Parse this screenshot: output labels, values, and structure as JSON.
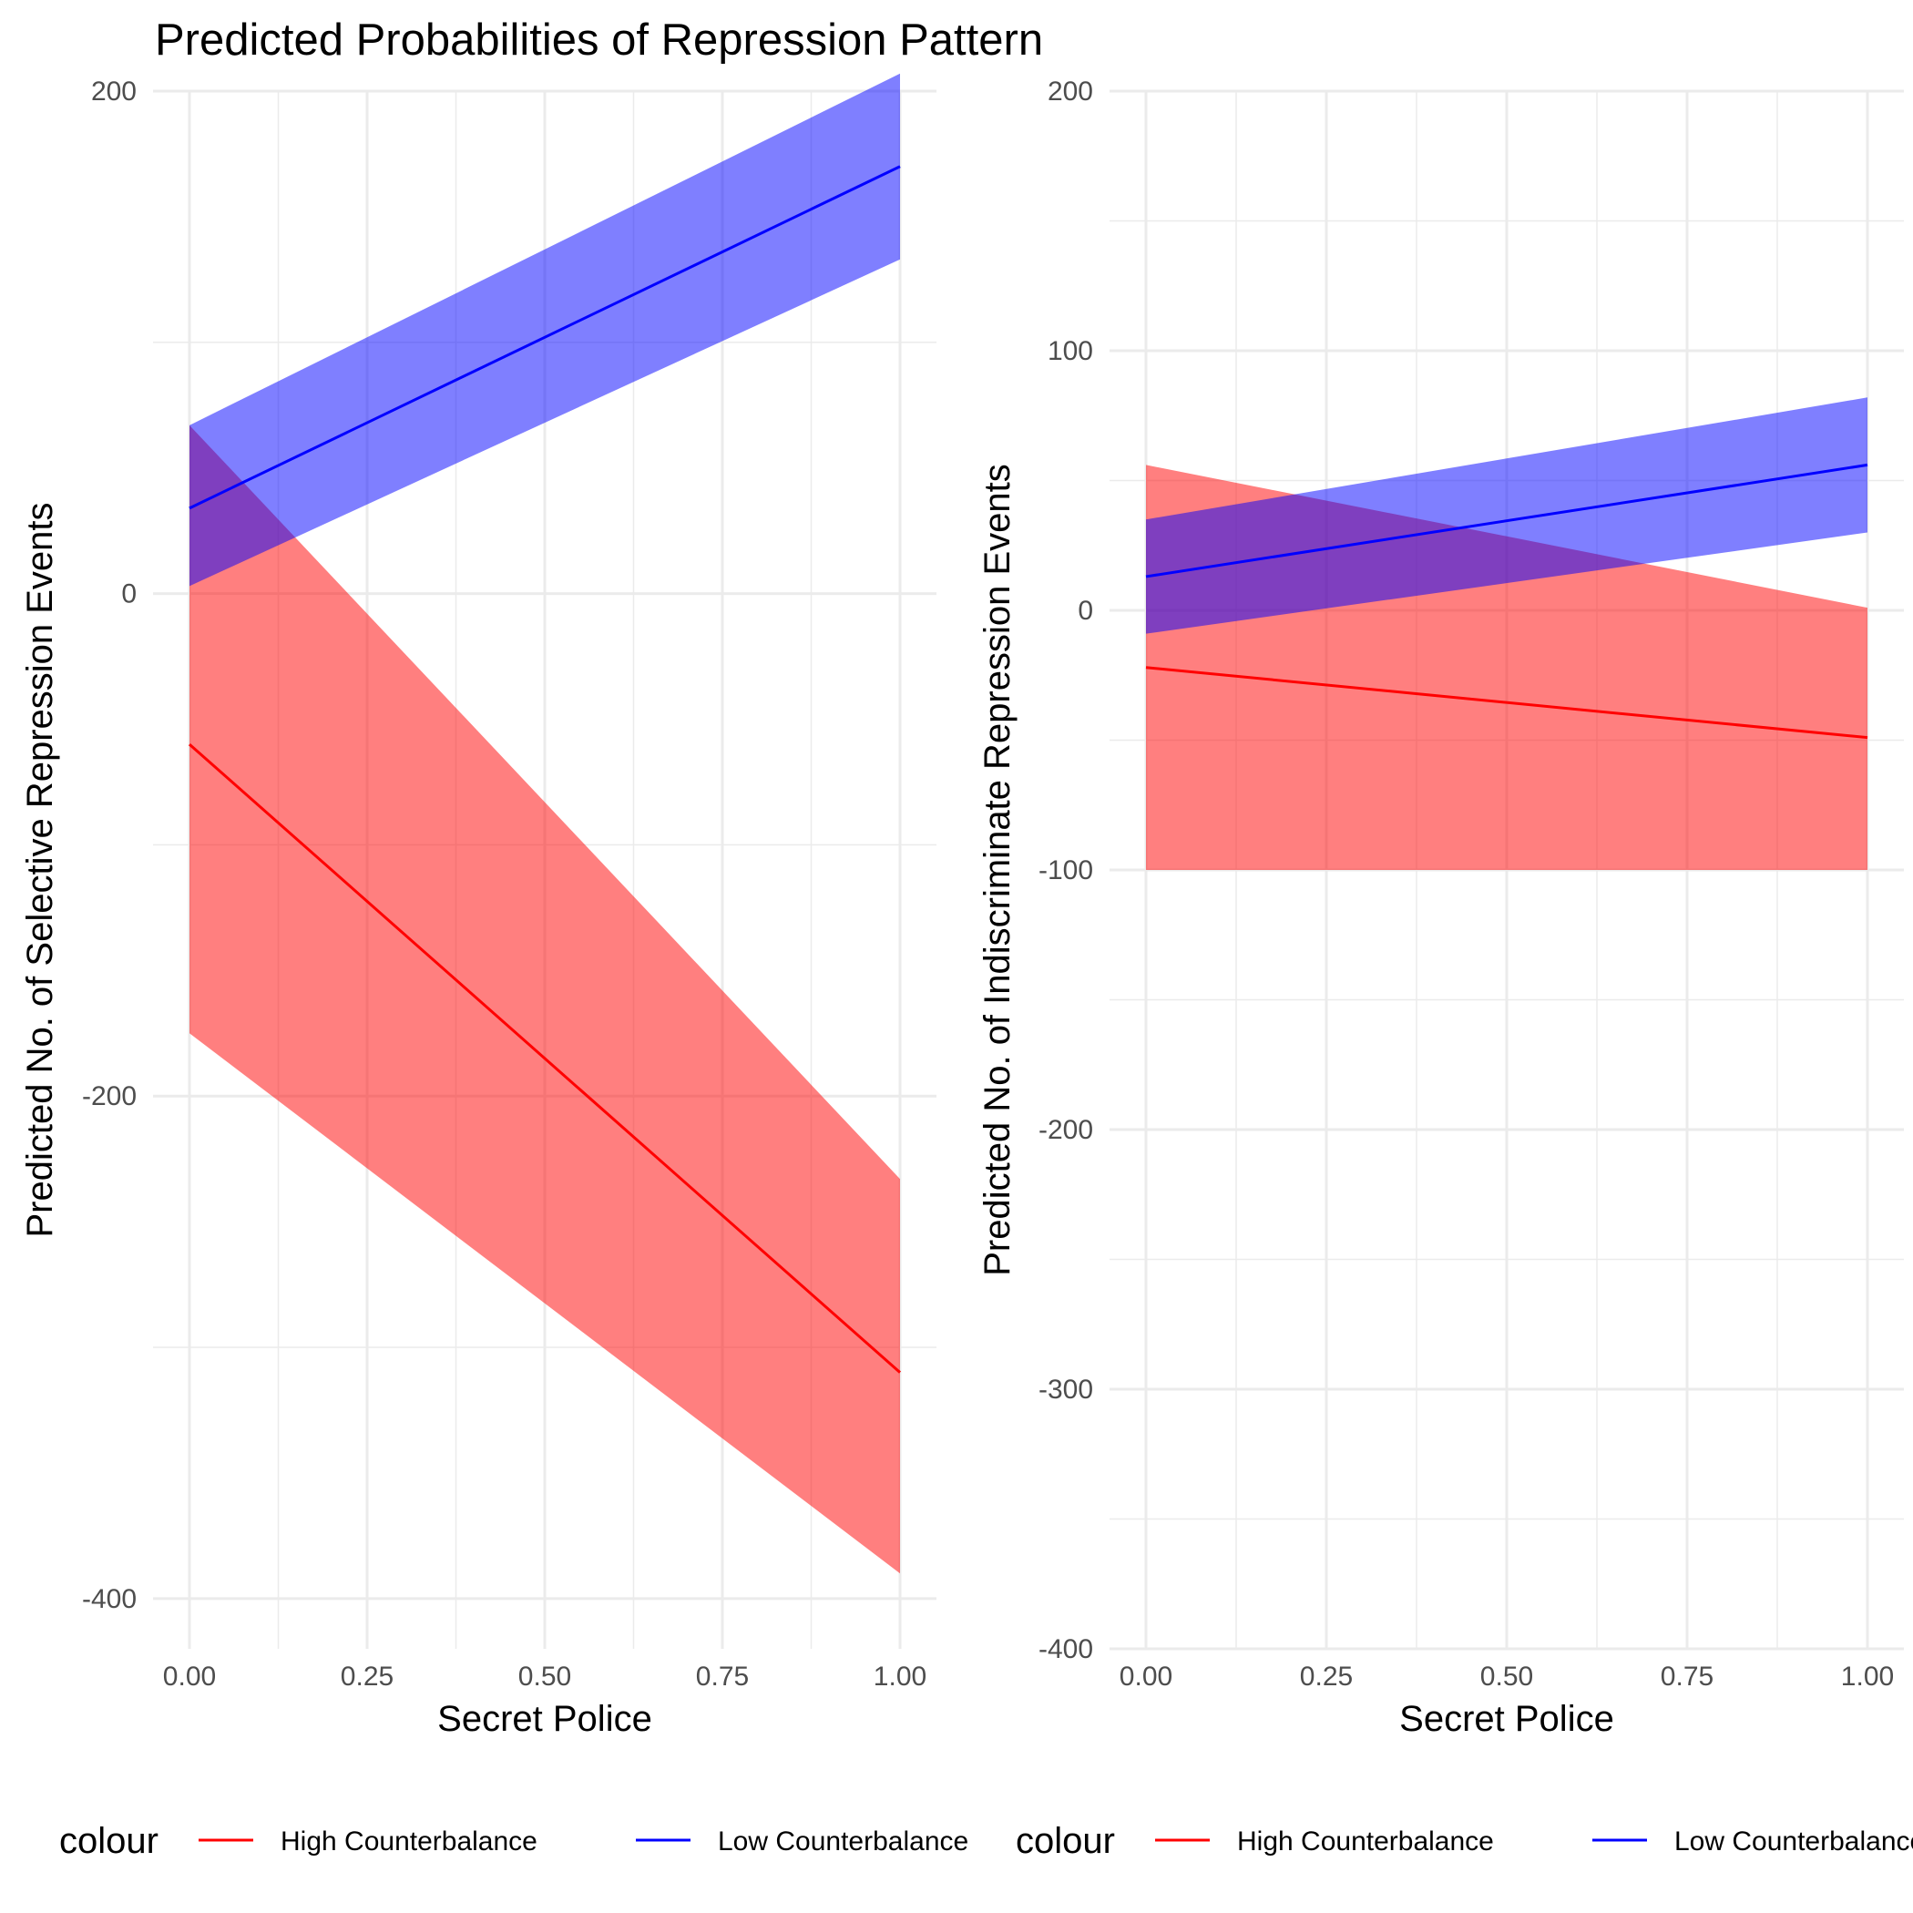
{
  "title": "Predicted Probabilities of Repression Pattern",
  "colors": {
    "high": "#ff0000",
    "low": "#0000ff",
    "high_band": "#ff0000",
    "low_band": "#0000ff",
    "grid": "#ebebeb",
    "background": "#ffffff"
  },
  "chart_data": [
    {
      "type": "line",
      "xlabel": "Secret Police",
      "ylabel": "Predicted No. of Selective Repression Events",
      "xlim": [
        0,
        1
      ],
      "ylim": [
        -420,
        200
      ],
      "x_ticks": [
        0,
        0.25,
        0.5,
        0.75,
        1
      ],
      "x_tick_labels": [
        "0.00",
        "0.25",
        "0.50",
        "0.75",
        "1.00"
      ],
      "y_ticks": [
        -400,
        -200,
        0,
        200
      ],
      "y_tick_labels": [
        "-400",
        "-200",
        "0",
        "200"
      ],
      "grid": true,
      "legend_title": "colour",
      "legend_position": "bottom",
      "series": [
        {
          "name": "High Counterbalance",
          "color": "#ff0000",
          "x": [
            0,
            1
          ],
          "y": [
            -60,
            -310
          ],
          "ci_lower": [
            -175,
            -390
          ],
          "ci_upper": [
            67,
            -233
          ]
        },
        {
          "name": "Low Counterbalance",
          "color": "#0000ff",
          "x": [
            0,
            1
          ],
          "y": [
            34,
            170
          ],
          "ci_lower": [
            3,
            133
          ],
          "ci_upper": [
            67,
            207
          ]
        }
      ]
    },
    {
      "type": "line",
      "xlabel": "Secret Police",
      "ylabel": "Predicted No. of Indiscriminate Repression Events",
      "xlim": [
        0,
        1
      ],
      "ylim": [
        -400,
        200
      ],
      "x_ticks": [
        0,
        0.25,
        0.5,
        0.75,
        1
      ],
      "x_tick_labels": [
        "0.00",
        "0.25",
        "0.50",
        "0.75",
        "1.00"
      ],
      "y_ticks": [
        -400,
        -300,
        -200,
        -100,
        0,
        100,
        200
      ],
      "y_tick_labels": [
        "-400",
        "-300",
        "-200",
        "-100",
        "0",
        "100",
        "200"
      ],
      "grid": true,
      "legend_title": "colour",
      "legend_position": "bottom",
      "series": [
        {
          "name": "High Counterbalance",
          "color": "#ff0000",
          "x": [
            0,
            1
          ],
          "y": [
            -22,
            -49
          ],
          "ci_lower": [
            -100,
            -100
          ],
          "ci_upper": [
            56,
            1
          ]
        },
        {
          "name": "Low Counterbalance",
          "color": "#0000ff",
          "x": [
            0,
            1
          ],
          "y": [
            13,
            56
          ],
          "ci_lower": [
            -9,
            30
          ],
          "ci_upper": [
            35,
            82
          ]
        }
      ]
    }
  ]
}
